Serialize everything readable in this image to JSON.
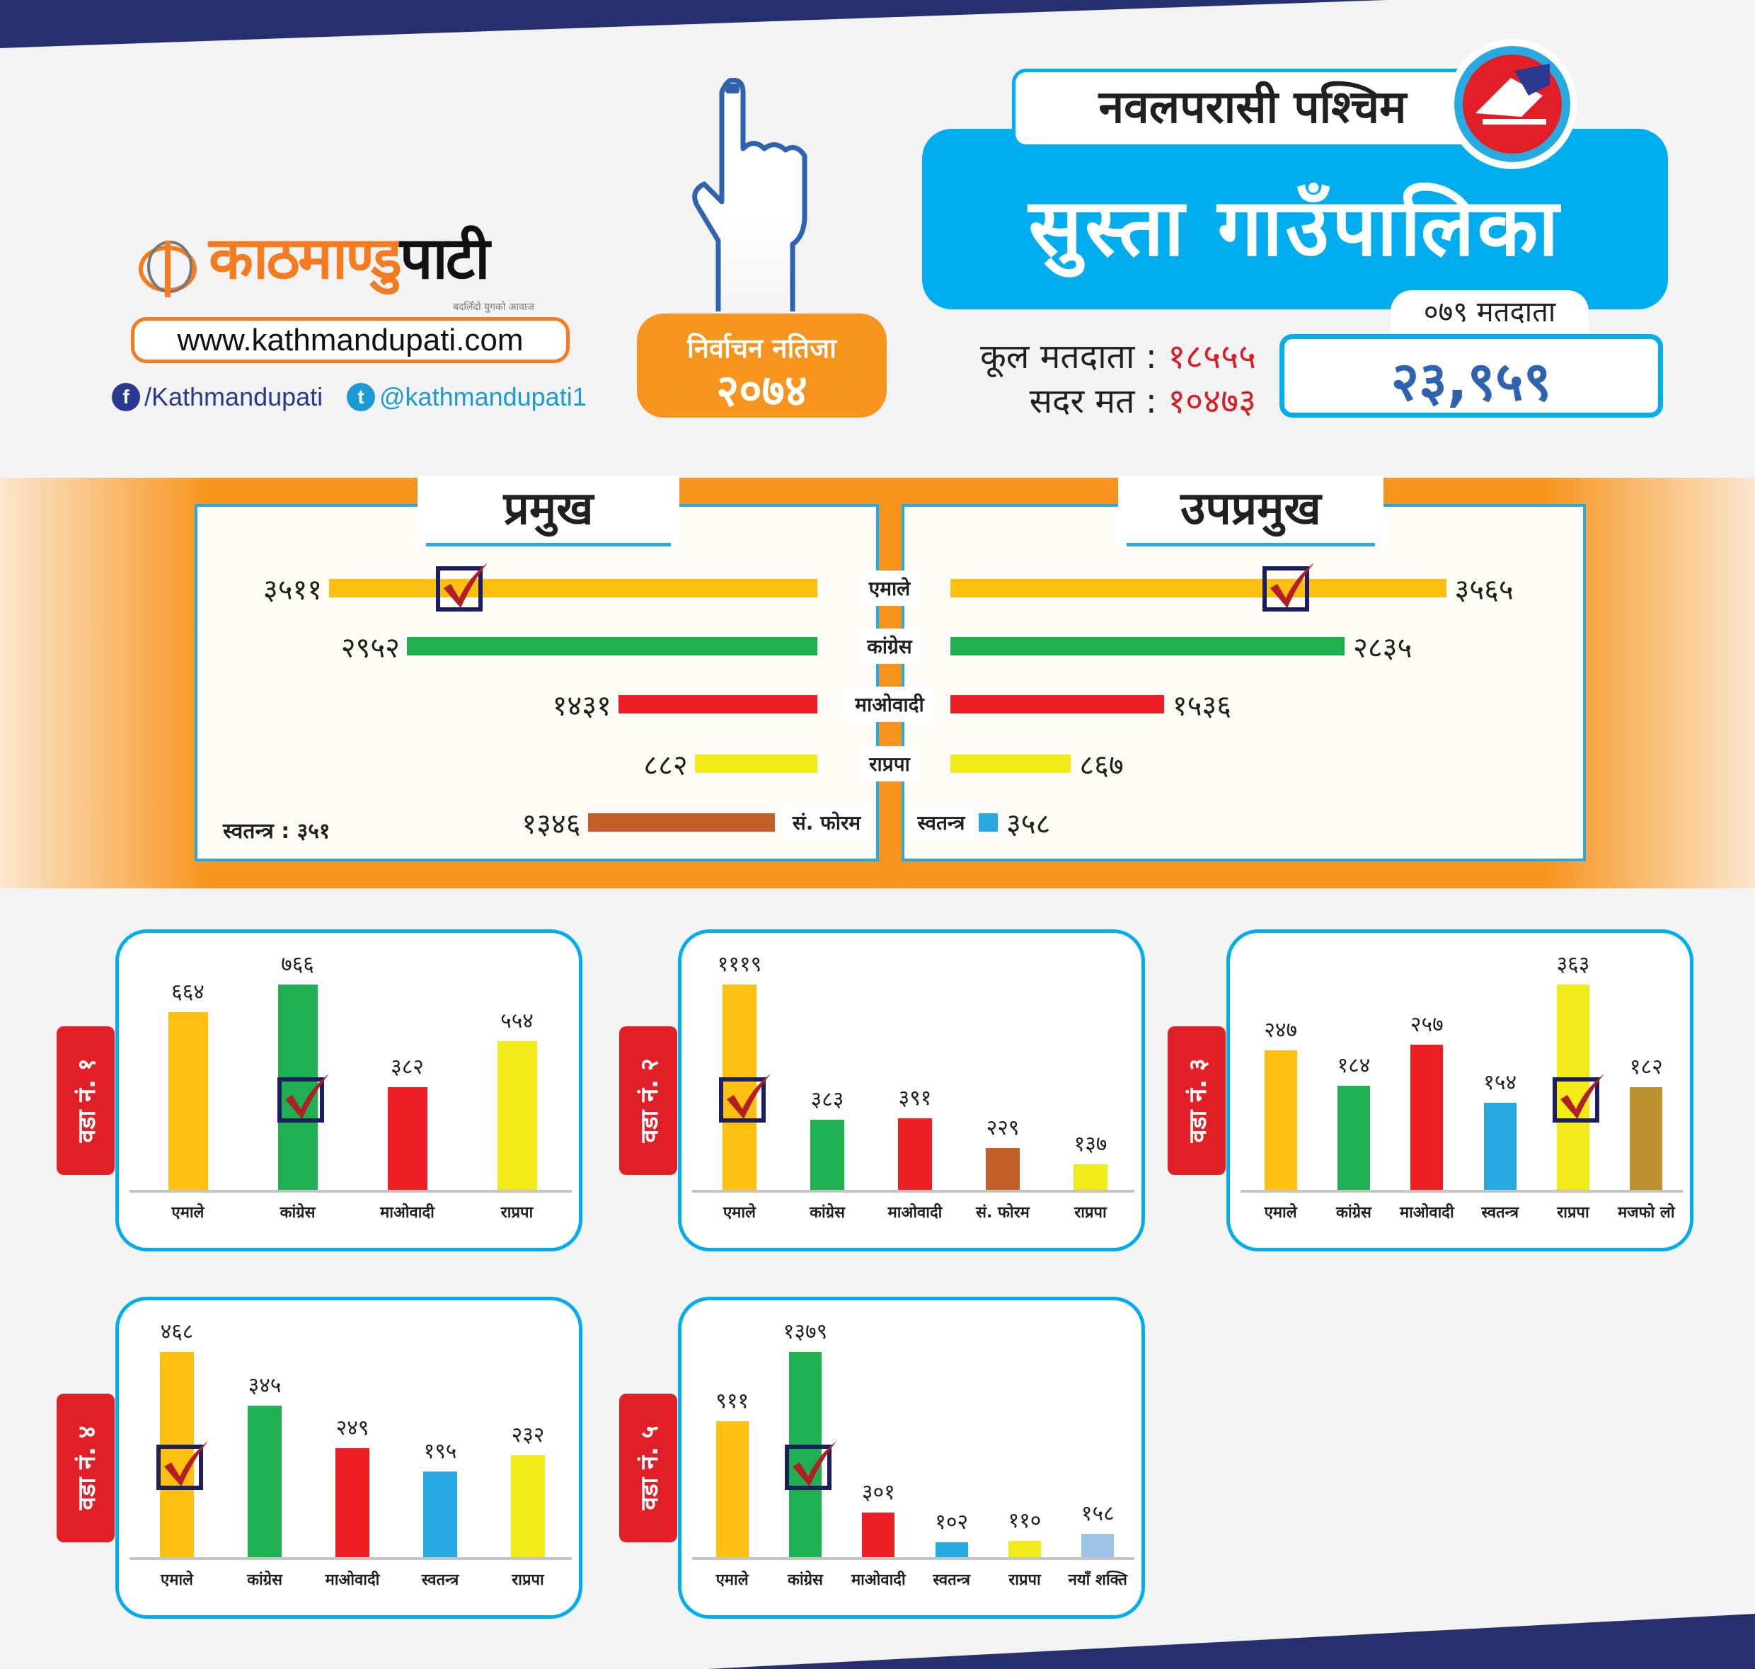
{
  "brand": {
    "logo_text_orange": "काठमाण्डु",
    "logo_text_black": "पाटी",
    "tagline": "बदलिँदो युगको आवाज",
    "url": "www.kathmandupati.com",
    "facebook": "/Kathmandupati",
    "twitter": "@kathmandupati1"
  },
  "badge": {
    "line1": "निर्वाचन नतिजा",
    "line2": "२०७४"
  },
  "header": {
    "district": "नवलपरासी पश्चिम",
    "municipality": "सुस्ता गाउँपालिका"
  },
  "stats": {
    "total_label": "कूल मतदाता",
    "total_value": "१८५५५",
    "cast_label": "सदर मत",
    "cast_value": "१०४७३",
    "sep": ":"
  },
  "voters_079": {
    "label": "०७९ मतदाता",
    "value": "२३,९५९"
  },
  "colors": {
    "एमाले": "#fdc010",
    "कांग्रेस": "#1fb050",
    "माओवादी": "#ee1e25",
    "राप्रपा": "#f2ea19",
    "सं. फोरम": "#c45e28",
    "स्वतन्त्र": "#27aae1",
    "मजफो लो": "#be922f",
    "नयाँ शक्ति": "#9dc3e6",
    "accent": "#00aeef",
    "navy": "#27306f"
  },
  "chart_data": [
    {
      "type": "bar",
      "orientation": "horizontal",
      "title": "प्रमुख",
      "categories": [
        "एमाले",
        "कांग्रेस",
        "माओवादी",
        "राप्रपा",
        "सं. फोरम"
      ],
      "values": [
        3511,
        2952,
        1431,
        882,
        1346
      ],
      "labels": [
        "३५११",
        "२९५२",
        "१४३१",
        "८८२",
        "१३४६"
      ],
      "winner": 0,
      "note": "स्वतन्त्र : ३५१"
    },
    {
      "type": "bar",
      "orientation": "horizontal",
      "title": "उपप्रमुख",
      "categories": [
        "एमाले",
        "कांग्रेस",
        "माओवादी",
        "राप्रपा",
        "स्वतन्त्र"
      ],
      "values": [
        3565,
        2835,
        1536,
        867,
        358
      ],
      "labels": [
        "३५६५",
        "२८३५",
        "१५३६",
        "८६७",
        "३५८"
      ],
      "winner": 0
    },
    {
      "type": "bar",
      "title": "वडा नं. १",
      "categories": [
        "एमाले",
        "कांग्रेस",
        "माओवादी",
        "राप्रपा"
      ],
      "values": [
        664,
        766,
        382,
        554
      ],
      "labels": [
        "६६४",
        "७६६",
        "३८२",
        "५५४"
      ],
      "winner": 1
    },
    {
      "type": "bar",
      "title": "वडा नं. २",
      "categories": [
        "एमाले",
        "कांग्रेस",
        "माओवादी",
        "सं. फोरम",
        "राप्रपा"
      ],
      "values": [
        1119,
        383,
        391,
        229,
        137
      ],
      "labels": [
        "१११९",
        "३८३",
        "३९१",
        "२२९",
        "१३७"
      ],
      "winner": 0
    },
    {
      "type": "bar",
      "title": "वडा नं. ३",
      "categories": [
        "एमाले",
        "कांग्रेस",
        "माओवादी",
        "स्वतन्त्र",
        "राप्रपा",
        "मजफो लो"
      ],
      "values": [
        247,
        184,
        257,
        154,
        363,
        182
      ],
      "labels": [
        "२४७",
        "१८४",
        "२५७",
        "१५४",
        "३६३",
        "१८२"
      ],
      "winner": 4
    },
    {
      "type": "bar",
      "title": "वडा नं. ४",
      "categories": [
        "एमाले",
        "कांग्रेस",
        "माओवादी",
        "स्वतन्त्र",
        "राप्रपा"
      ],
      "values": [
        468,
        345,
        249,
        195,
        232
      ],
      "labels": [
        "४६८",
        "३४५",
        "२४९",
        "१९५",
        "२३२"
      ],
      "winner": 0
    },
    {
      "type": "bar",
      "title": "वडा नं. ५",
      "categories": [
        "एमाले",
        "कांग्रेस",
        "माओवादी",
        "स्वतन्त्र",
        "राप्रपा",
        "नयाँ शक्ति"
      ],
      "values": [
        911,
        1379,
        301,
        102,
        110,
        158
      ],
      "labels": [
        "९११",
        "१३७९",
        "३०१",
        "१०२",
        "११०",
        "१५८"
      ],
      "winner": 1
    }
  ]
}
